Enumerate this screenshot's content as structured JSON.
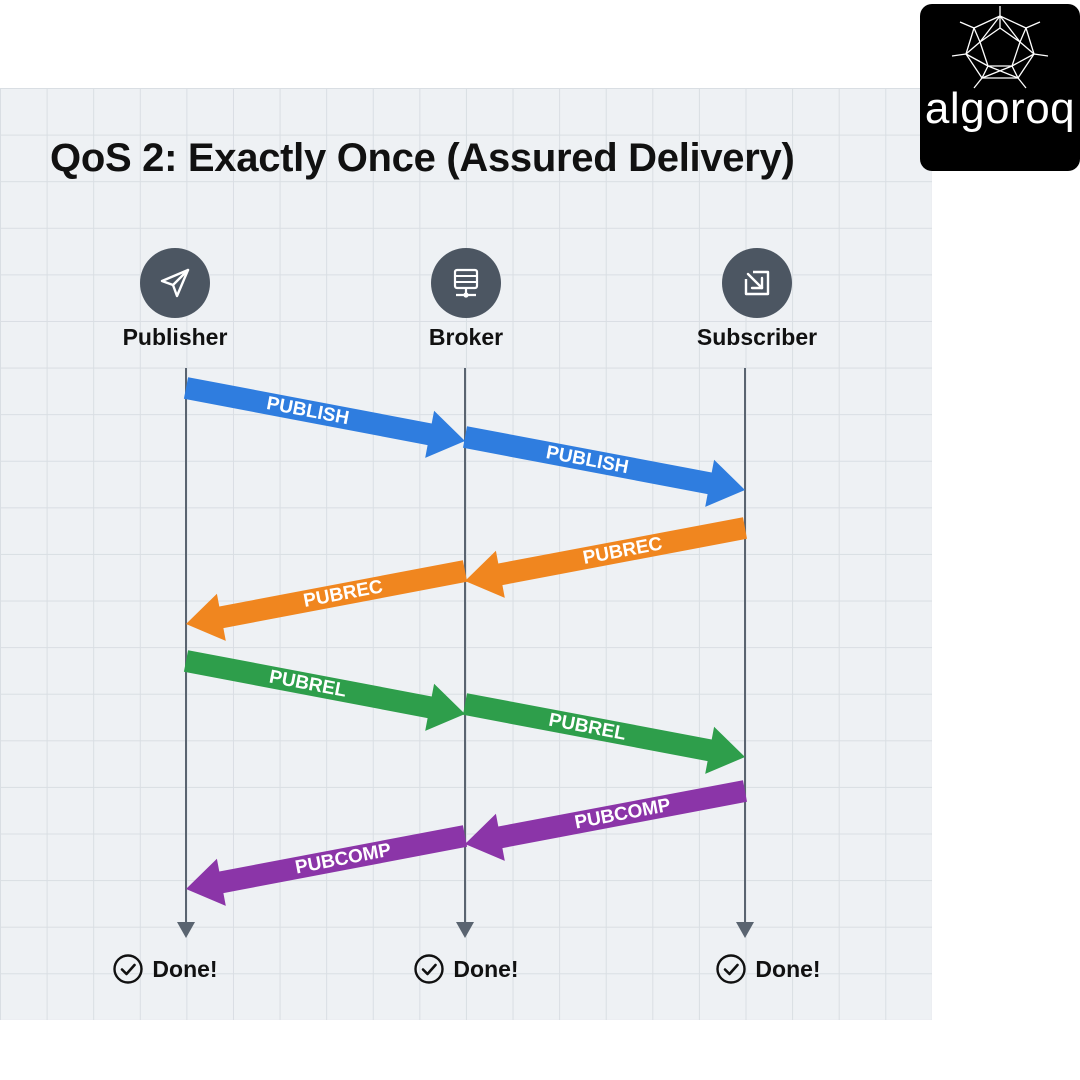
{
  "title": "QoS 2: Exactly Once (Assured Delivery)",
  "logo": {
    "text": "algoroq",
    "icon": "star-polyhedron-icon"
  },
  "actors": [
    {
      "label": "Publisher",
      "icon": "paper-plane-icon"
    },
    {
      "label": "Broker",
      "icon": "server-icon"
    },
    {
      "label": "Subscriber",
      "icon": "arrow-in-box-icon"
    }
  ],
  "messages": [
    {
      "label": "PUBLISH",
      "from": "Publisher",
      "to": "Broker",
      "color": "#2f7ddf"
    },
    {
      "label": "PUBLISH",
      "from": "Broker",
      "to": "Subscriber",
      "color": "#2f7ddf"
    },
    {
      "label": "PUBREC",
      "from": "Subscriber",
      "to": "Broker",
      "color": "#f0861f"
    },
    {
      "label": "PUBREC",
      "from": "Broker",
      "to": "Publisher",
      "color": "#f0861f"
    },
    {
      "label": "PUBREL",
      "from": "Publisher",
      "to": "Broker",
      "color": "#2e9e4b"
    },
    {
      "label": "PUBREL",
      "from": "Broker",
      "to": "Subscriber",
      "color": "#2e9e4b"
    },
    {
      "label": "PUBCOMP",
      "from": "Subscriber",
      "to": "Broker",
      "color": "#8b35a8"
    },
    {
      "label": "PUBCOMP",
      "from": "Broker",
      "to": "Publisher",
      "color": "#8b35a8"
    }
  ],
  "done": [
    {
      "label": "Done!",
      "icon": "check-circle-icon"
    },
    {
      "label": "Done!",
      "icon": "check-circle-icon"
    },
    {
      "label": "Done!",
      "icon": "check-circle-icon"
    }
  ]
}
